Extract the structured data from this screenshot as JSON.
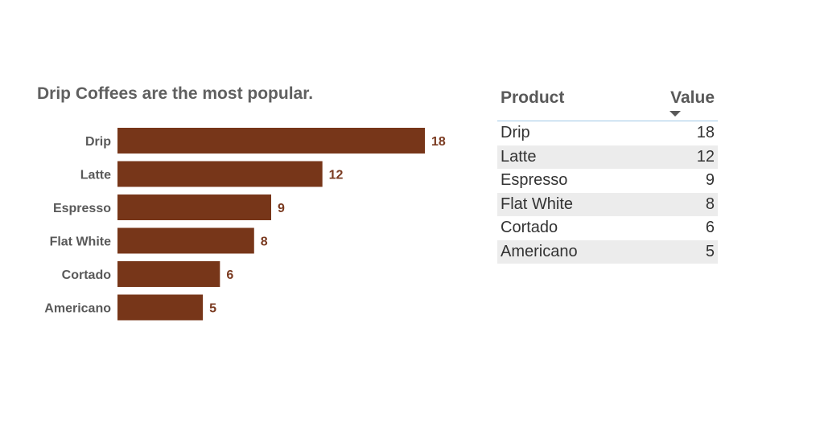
{
  "chart_data": {
    "type": "bar",
    "orientation": "horizontal",
    "title": "Drip Coffees are the most popular.",
    "categories": [
      "Drip",
      "Latte",
      "Espresso",
      "Flat White",
      "Cortado",
      "Americano"
    ],
    "values": [
      18,
      12,
      9,
      8,
      6,
      5
    ],
    "xlim": [
      0,
      18
    ],
    "grid": false,
    "data_labels": true,
    "bar_color": "#773619"
  },
  "table": {
    "headers": {
      "product": "Product",
      "value": "Value"
    },
    "sort_icon": "sort-descending-icon",
    "rows": [
      {
        "product": "Drip",
        "value": "18"
      },
      {
        "product": "Latte",
        "value": "12"
      },
      {
        "product": "Espresso",
        "value": "9"
      },
      {
        "product": "Flat White",
        "value": "8"
      },
      {
        "product": "Cortado",
        "value": "6"
      },
      {
        "product": "Americano",
        "value": "5"
      }
    ]
  }
}
